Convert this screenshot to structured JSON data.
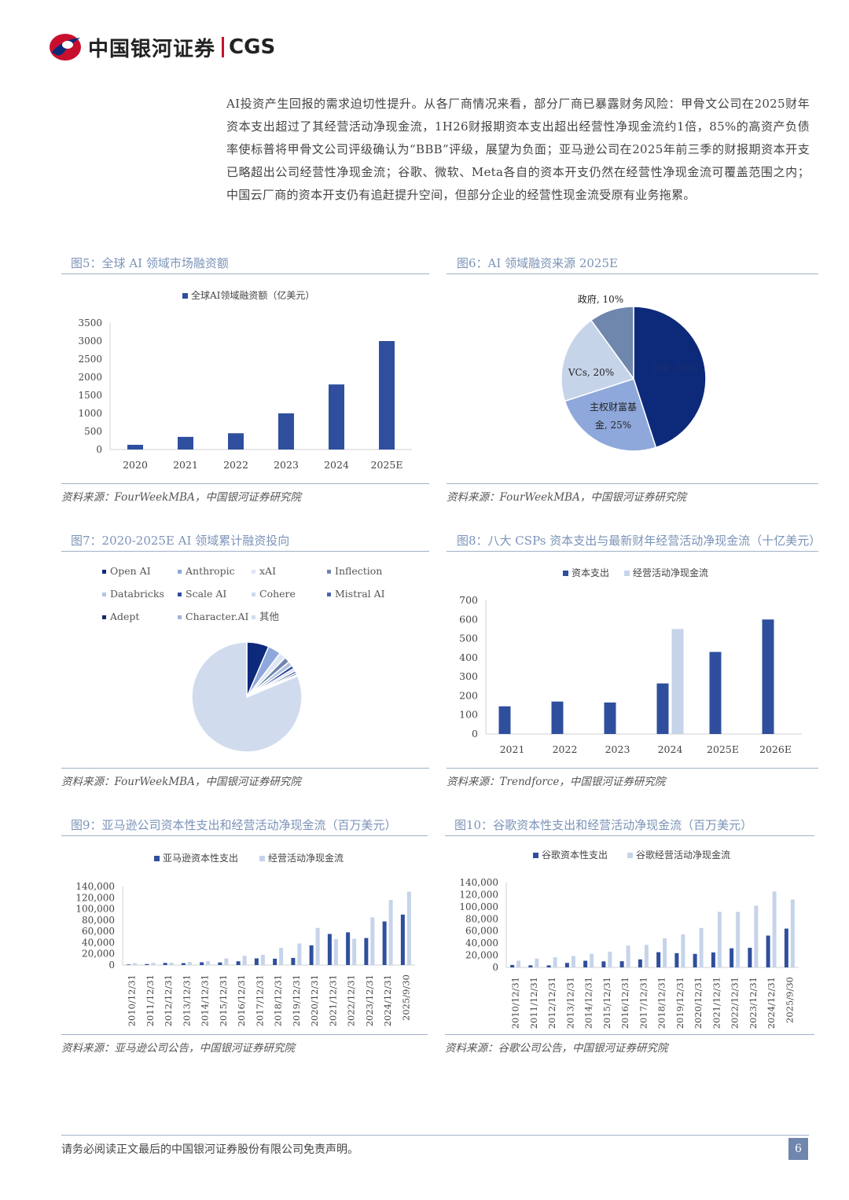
{
  "header": {
    "brand_cn": "中国银河证券",
    "brand_en": "CGS"
  },
  "paragraph": "AI投资产生回报的需求迫切性提升。从各厂商情况来看，部分厂商已暴露财务风险：甲骨文公司在2025财年资本支出超过了其经营活动净现金流，1H26财报期资本支出超出经营性净现金流约1倍，85%的高资产负债率使标普将甲骨文公司评级确认为“BBB”评级，展望为负面；亚马逊公司在2025年前三季的财报期资本开支已略超出公司经营性净现金流；谷歌、微软、Meta各自的资本开支仍然在经营性净现金流可覆盖范围之内；中国云厂商的资本开支仍有追赶提升空间，但部分企业的经营性现金流受原有业务拖累。",
  "figures": {
    "fig5": {
      "title": "图5：全球 AI 领域市场融资额",
      "source": "资料来源：FourWeekMBA，中国银河证券研究院"
    },
    "fig6": {
      "title": "图6：AI 领域融资来源 2025E",
      "source": "资料来源：FourWeekMBA，中国银河证券研究院"
    },
    "fig7": {
      "title": "图7：2020-2025E AI 领域累计融资投向",
      "source": "资料来源：FourWeekMBA，中国银河证券研究院"
    },
    "fig8": {
      "title": "图8：八大 CSPs 资本支出与最新财年经营活动净现金流（十亿美元）",
      "source": "资料来源：Trendforce，中国银河证券研究院"
    },
    "fig9": {
      "title": "图9：亚马逊公司资本性支出和经营活动净现金流（百万美元）",
      "source": "资料来源：亚马逊公司公告，中国银河证券研究院"
    },
    "fig10": {
      "title": "图10：谷歌资本性支出和经营活动净现金流（百万美元）",
      "source": "资料来源：谷歌公司公告，中国银河证券研究院"
    }
  },
  "colors": {
    "dark_blue": "#2f4f9e",
    "light_blue": "#c6d4ea",
    "mid_blue": "#8fa8db",
    "grey_blue": "#6f86ad",
    "navy": "#0d2a7a"
  },
  "chart_data": [
    {
      "id": "fig5",
      "type": "bar",
      "categories": [
        "2020",
        "2021",
        "2022",
        "2023",
        "2024",
        "2025E"
      ],
      "series": [
        {
          "name": "全球AI领域融资额（亿美元）",
          "values": [
            130,
            350,
            450,
            1000,
            1800,
            3000
          ]
        }
      ],
      "yticks": [
        "0",
        "500",
        "1000",
        "1500",
        "2000",
        "2500",
        "3000",
        "3500"
      ],
      "ylim": [
        0,
        3500
      ],
      "legend": "top"
    },
    {
      "id": "fig6",
      "type": "pie",
      "slices": [
        {
          "label": "企业, 45%",
          "value": 45,
          "color": "#0d2a7a"
        },
        {
          "label": "主权财富基金, 25%",
          "label_lines": [
            "主权财富基",
            "金, 25%"
          ],
          "value": 25,
          "color": "#8fa8db"
        },
        {
          "label": "VCs, 20%",
          "value": 20,
          "color": "#c6d4ea"
        },
        {
          "label": "政府, 10%",
          "value": 10,
          "color": "#6f86ad"
        }
      ]
    },
    {
      "id": "fig7",
      "type": "pie",
      "legend": [
        "Open AI",
        "Anthropic",
        "xAI",
        "Inflection",
        "Databricks",
        "Scale AI",
        "Cohere",
        "Mistral AI",
        "Adept",
        "Character.AI",
        "其他"
      ],
      "slices": [
        {
          "name": "Open AI",
          "value": 6.5,
          "color": "#0d2a7a"
        },
        {
          "name": "Anthropic",
          "value": 3.8,
          "color": "#8fa8db"
        },
        {
          "name": "xAI",
          "value": 2.0,
          "color": "#dfe6f3"
        },
        {
          "name": "Inflection",
          "value": 1.6,
          "color": "#6f86ad"
        },
        {
          "name": "Databricks",
          "value": 1.4,
          "color": "#b4c3df"
        },
        {
          "name": "Scale AI",
          "value": 1.0,
          "color": "#2f4f9e"
        },
        {
          "name": "Cohere",
          "value": 0.8,
          "color": "#cdd8ec"
        },
        {
          "name": "Mistral AI",
          "value": 0.7,
          "color": "#4a67a8"
        },
        {
          "name": "Adept",
          "value": 0.5,
          "color": "#102a66"
        },
        {
          "name": "Character.AI",
          "value": 0.4,
          "color": "#a3b5d9"
        },
        {
          "name": "其他",
          "value": 81.3,
          "color": "#d0dcee"
        }
      ]
    },
    {
      "id": "fig8",
      "type": "bar",
      "categories": [
        "2021",
        "2022",
        "2023",
        "2024",
        "2025E",
        "2026E"
      ],
      "series": [
        {
          "name": "资本支出",
          "values": [
            145,
            170,
            165,
            265,
            430,
            600
          ],
          "color": "#2f4f9e"
        },
        {
          "name": "经营活动净现金流",
          "values": [
            null,
            null,
            null,
            550,
            null,
            null
          ],
          "color": "#c6d4ea"
        }
      ],
      "yticks": [
        "0",
        "100",
        "200",
        "300",
        "400",
        "500",
        "600",
        "700"
      ],
      "ylim": [
        0,
        700
      ],
      "legend": "top"
    },
    {
      "id": "fig9",
      "type": "bar",
      "categories": [
        "2010/12/31",
        "2011/12/31",
        "2012/12/31",
        "2013/12/31",
        "2014/12/31",
        "2015/12/31",
        "2016/12/31",
        "2017/12/31",
        "2018/12/31",
        "2019/12/31",
        "2020/12/31",
        "2021/12/31",
        "2022/12/31",
        "2023/12/31",
        "2024/12/31",
        "2025/9/30"
      ],
      "series": [
        {
          "name": "亚马逊资本性支出",
          "values": [
            1000,
            1800,
            3800,
            3400,
            4900,
            4600,
            6700,
            11900,
            11300,
            12700,
            35000,
            55400,
            58300,
            48100,
            77700,
            89900
          ],
          "color": "#2f4f9e"
        },
        {
          "name": "经营活动净现金流",
          "values": [
            3500,
            3900,
            4200,
            5500,
            6800,
            11900,
            16400,
            18400,
            30700,
            38500,
            66100,
            46300,
            46800,
            84900,
            115900,
            130700
          ],
          "color": "#c6d4ea"
        }
      ],
      "yticks": [
        "0",
        "20,000",
        "40,000",
        "60,000",
        "80,000",
        "100,000",
        "120,000",
        "140,000"
      ],
      "ylim": [
        0,
        140000
      ],
      "legend": "top"
    },
    {
      "id": "fig10",
      "type": "bar",
      "categories": [
        "2010/12/31",
        "2011/12/31",
        "2012/12/31",
        "2013/12/31",
        "2014/12/31",
        "2015/12/31",
        "2016/12/31",
        "2017/12/31",
        "2018/12/31",
        "2019/12/31",
        "2020/12/31",
        "2021/12/31",
        "2022/12/31",
        "2023/12/31",
        "2024/12/31",
        "2025/9/30"
      ],
      "series": [
        {
          "name": "谷歌资本性支出",
          "values": [
            4000,
            3400,
            3300,
            7400,
            11000,
            9900,
            10200,
            13200,
            25100,
            23500,
            22300,
            24600,
            31500,
            32300,
            52500,
            64000
          ],
          "color": "#2f4f9e"
        },
        {
          "name": "谷歌经营活动净现金流",
          "values": [
            11100,
            14600,
            16600,
            18700,
            22400,
            26000,
            36000,
            37100,
            48000,
            54500,
            65100,
            91700,
            91500,
            101700,
            125300,
            112000
          ],
          "color": "#c6d4ea"
        }
      ],
      "yticks": [
        "0",
        "20,000",
        "40,000",
        "60,000",
        "80,000",
        "100,000",
        "120,000",
        "140,000"
      ],
      "ylim": [
        0,
        140000
      ],
      "legend": "top"
    }
  ],
  "footer": {
    "disclaimer": "请务必阅读正文最后的中国银河证券股份有限公司免责声明。",
    "page": "6"
  }
}
